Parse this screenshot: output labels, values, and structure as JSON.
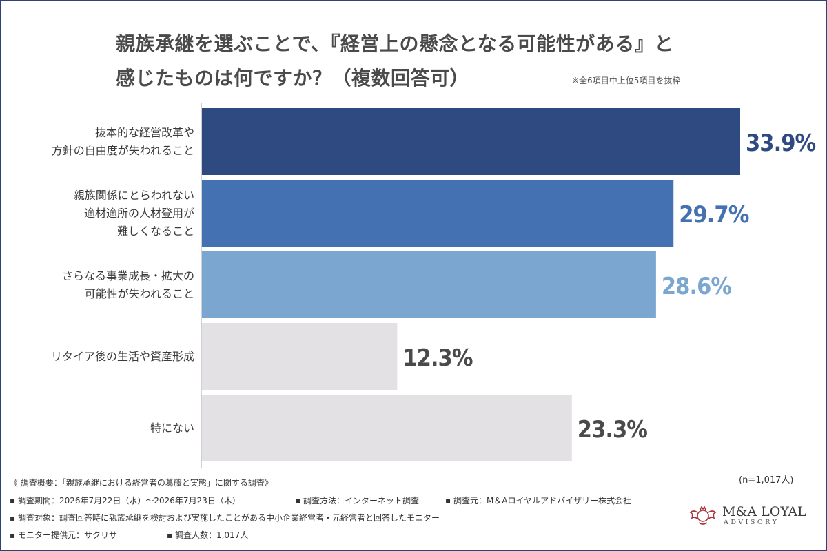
{
  "title_line1": "親族承継を選ぶことで、『経営上の懸念となる可能性がある』と",
  "title_line2": "感じたものは何ですか？（複数回答可）",
  "note": "※全6項目中上位5項目を抜粋",
  "sample_size": "(n=1,017人)",
  "chart_data": {
    "type": "bar",
    "orientation": "horizontal",
    "categories": [
      "抜本的な経営改革や\n方針の自由度が失われること",
      "親族関係にとらわれない\n適材適所の人材登用が\n難しくなること",
      "さらなる事業成長・拡大の\n可能性が失われること",
      "リタイア後の生活や資産形成",
      "特にない"
    ],
    "values": [
      33.9,
      29.7,
      28.6,
      12.3,
      23.3
    ],
    "value_labels": [
      "33.9%",
      "29.7%",
      "28.6%",
      "12.3%",
      "23.3%"
    ],
    "bar_colors": [
      "#2f4a80",
      "#4471b1",
      "#7aa6cf",
      "#e3e1e4",
      "#e3e1e4"
    ],
    "label_colors": [
      "#2f4a80",
      "#4471b1",
      "#7aa6cf",
      "#4a4a4a",
      "#4a4a4a"
    ],
    "xlim": [
      0,
      34.5
    ],
    "grid": false,
    "legend": "none"
  },
  "footer": {
    "line1": "《 調査概要：「親族承継における経営者の葛藤と実態」に関する調査》",
    "line2a": "▪ 調査期間：2026年7月22日（水）〜2026年7月23日（木）",
    "line2b": "▪ 調査方法：インターネット調査",
    "line2c": "▪ 調査元：M＆Aロイヤルアドバイザリー株式会社",
    "line3": "▪ 調査対象：調査回答時に親族承継を検討および実施したことがある中小企業経営者・元経営者と回答したモニター",
    "line4a": "▪ モニター提供元：サクリサ",
    "line4b": "▪ 調査人数：1,017人"
  },
  "logo": {
    "name": "M&A LOYAL",
    "sub": "ADVISORY",
    "emblem_color": "#a8323a"
  }
}
